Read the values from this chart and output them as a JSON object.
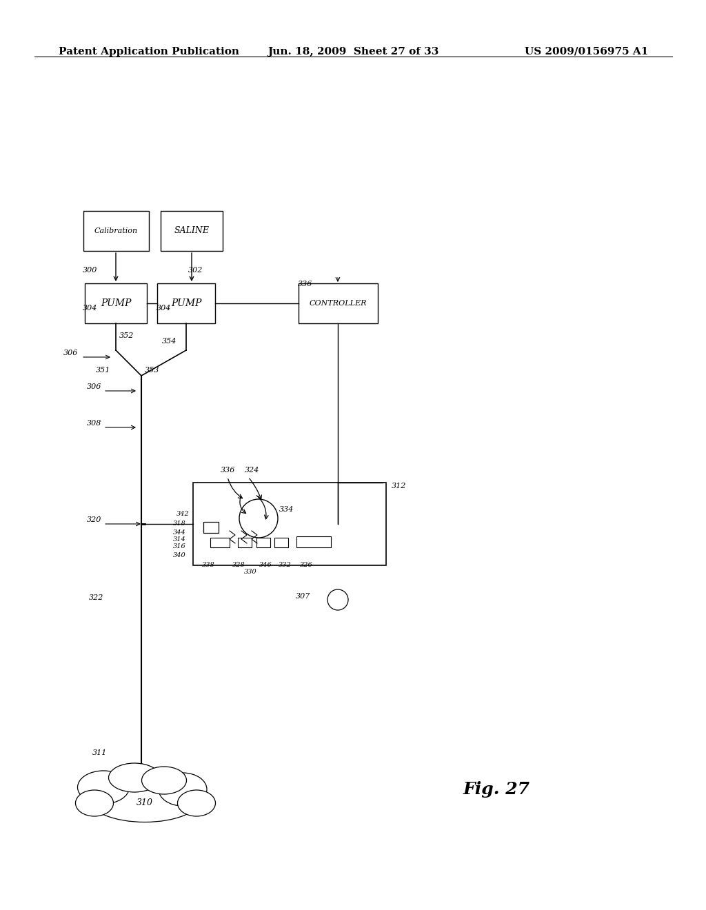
{
  "bg_color": "#ffffff",
  "header_left": "Patent Application Publication",
  "header_mid": "Jun. 18, 2009  Sheet 27 of 33",
  "header_right": "US 2009/0156975 A1",
  "fig_label": "Fig. 27"
}
